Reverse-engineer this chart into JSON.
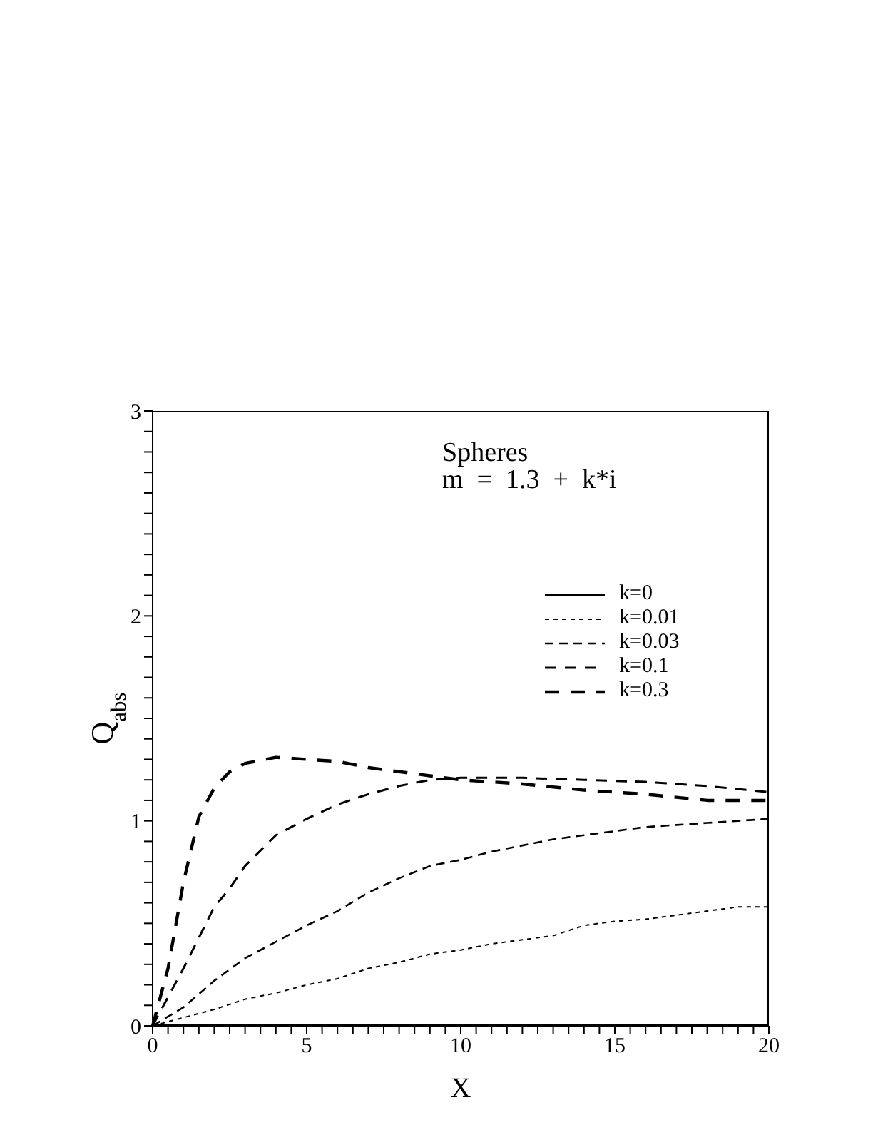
{
  "chart_data": {
    "type": "line",
    "xlabel": "X",
    "ylabel": "Q$_{abs}$",
    "annotations": [
      "Spheres",
      "m  =  1.3  +  k*i"
    ],
    "xlim": [
      0,
      20
    ],
    "ylim": [
      0,
      3
    ],
    "xticks": [
      0,
      {
        "value": 0.5,
        "label": null
      },
      {
        "value": 1,
        "label": null
      },
      {
        "value": 1.5,
        "label": null
      },
      {
        "value": 2,
        "label": null
      },
      {
        "value": 2.5,
        "label": null
      },
      {
        "value": 3,
        "label": null
      },
      {
        "value": 3.5,
        "label": null
      },
      {
        "value": 4,
        "label": null
      },
      {
        "value": 4.5,
        "label": null
      },
      5,
      {
        "value": 5.5,
        "label": null
      },
      {
        "value": 6,
        "label": null
      },
      {
        "value": 6.5,
        "label": null
      },
      {
        "value": 7,
        "label": null
      },
      {
        "value": 7.5,
        "label": null
      },
      {
        "value": 8,
        "label": null
      },
      {
        "value": 8.5,
        "label": null
      },
      {
        "value": 9,
        "label": null
      },
      {
        "value": 9.5,
        "label": null
      },
      10,
      {
        "value": 10.5,
        "label": null
      },
      {
        "value": 11,
        "label": null
      },
      {
        "value": 11.5,
        "label": null
      },
      {
        "value": 12,
        "label": null
      },
      {
        "value": 12.5,
        "label": null
      },
      {
        "value": 13,
        "label": null
      },
      {
        "value": 13.5,
        "label": null
      },
      {
        "value": 14,
        "label": null
      },
      {
        "value": 14.5,
        "label": null
      },
      15,
      {
        "value": 15.5,
        "label": null
      },
      {
        "value": 16,
        "label": null
      },
      {
        "value": 16.5,
        "label": null
      },
      {
        "value": 17,
        "label": null
      },
      {
        "value": 17.5,
        "label": null
      },
      {
        "value": 18,
        "label": null
      },
      {
        "value": 18.5,
        "label": null
      },
      {
        "value": 19,
        "label": null
      },
      {
        "value": 19.5,
        "label": null
      },
      20
    ],
    "yticks": [
      0,
      {
        "value": 0.1,
        "label": null
      },
      {
        "value": 0.2,
        "label": null
      },
      {
        "value": 0.3,
        "label": null
      },
      {
        "value": 0.4,
        "label": null
      },
      {
        "value": 0.5,
        "label": null
      },
      {
        "value": 0.6,
        "label": null
      },
      {
        "value": 0.7,
        "label": null
      },
      {
        "value": 0.8,
        "label": null
      },
      {
        "value": 0.9,
        "label": null
      },
      1,
      {
        "value": 1.1,
        "label": null
      },
      {
        "value": 1.2,
        "label": null
      },
      {
        "value": 1.3,
        "label": null
      },
      {
        "value": 1.4,
        "label": null
      },
      {
        "value": 1.5,
        "label": null
      },
      {
        "value": 1.6,
        "label": null
      },
      {
        "value": 1.7,
        "label": null
      },
      {
        "value": 1.8,
        "label": null
      },
      {
        "value": 1.9,
        "label": null
      },
      2,
      {
        "value": 2.1,
        "label": null
      },
      {
        "value": 2.2,
        "label": null
      },
      {
        "value": 2.3,
        "label": null
      },
      {
        "value": 2.4,
        "label": null
      },
      {
        "value": 2.5,
        "label": null
      },
      {
        "value": 2.6,
        "label": null
      },
      {
        "value": 2.7,
        "label": null
      },
      {
        "value": 2.8,
        "label": null
      },
      {
        "value": 2.9,
        "label": null
      },
      3
    ],
    "grid": false,
    "legend": "right",
    "marker": "none",
    "series": [
      {
        "name": "k=0",
        "color": "#000000",
        "line_style": "solid",
        "x": [
          0,
          20
        ],
        "values": [
          0,
          0
        ]
      },
      {
        "name": "k=0.01",
        "color": "#000000",
        "line_style": "dotted",
        "x": [
          0,
          1,
          2,
          3,
          4,
          5,
          6,
          7,
          8,
          9,
          10,
          11,
          12,
          13,
          14,
          15,
          16,
          17,
          18,
          19,
          20
        ],
        "values": [
          0,
          0.04,
          0.08,
          0.13,
          0.16,
          0.2,
          0.23,
          0.28,
          0.31,
          0.35,
          0.37,
          0.4,
          0.42,
          0.44,
          0.49,
          0.51,
          0.52,
          0.54,
          0.56,
          0.58,
          0.58
        ]
      },
      {
        "name": "k=0.03",
        "color": "#000000",
        "line_style": "dashed",
        "x": [
          0,
          1,
          2,
          3,
          4,
          5,
          6,
          7,
          8,
          9,
          10,
          11,
          12,
          13,
          14,
          15,
          16,
          17,
          18,
          19,
          20
        ],
        "values": [
          0,
          0.09,
          0.22,
          0.33,
          0.41,
          0.49,
          0.56,
          0.65,
          0.72,
          0.78,
          0.81,
          0.85,
          0.88,
          0.91,
          0.93,
          0.95,
          0.97,
          0.98,
          0.99,
          1.0,
          1.01
        ]
      },
      {
        "name": "k=0.1",
        "color": "#000000",
        "line_style": "dashed",
        "x": [
          0,
          0.5,
          1,
          1.5,
          2,
          2.5,
          3,
          4,
          5,
          6,
          7,
          8,
          9,
          10,
          12,
          14,
          16,
          18,
          20
        ],
        "values": [
          0,
          0.14,
          0.28,
          0.43,
          0.58,
          0.67,
          0.78,
          0.93,
          1.01,
          1.08,
          1.13,
          1.17,
          1.2,
          1.21,
          1.21,
          1.2,
          1.19,
          1.17,
          1.14
        ]
      },
      {
        "name": "k=0.3",
        "color": "#000000",
        "line_style": "dashed",
        "x": [
          0,
          0.5,
          1,
          1.5,
          2,
          2.5,
          3,
          4,
          5,
          6,
          7,
          8,
          9,
          10,
          12,
          14,
          16,
          18,
          20
        ],
        "values": [
          0,
          0.28,
          0.7,
          1.02,
          1.16,
          1.24,
          1.28,
          1.31,
          1.3,
          1.29,
          1.26,
          1.24,
          1.22,
          1.2,
          1.18,
          1.15,
          1.13,
          1.1,
          1.1
        ]
      }
    ]
  }
}
